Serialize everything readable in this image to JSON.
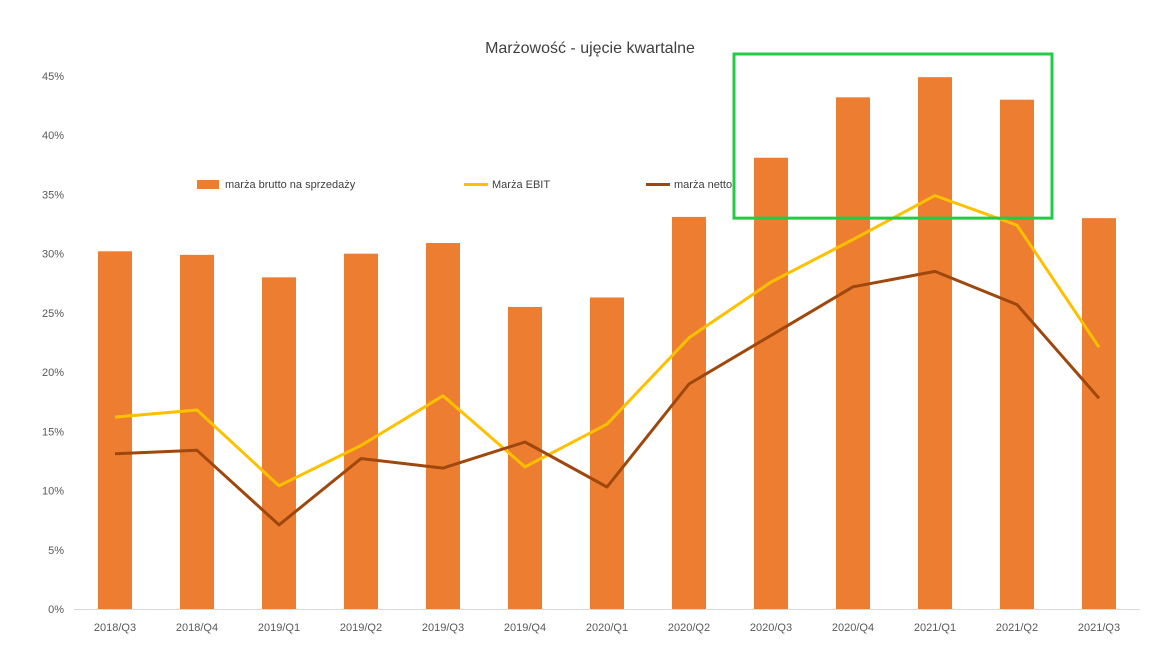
{
  "chart_data": {
    "type": "bar",
    "title": "Marżowość - ujęcie kwartalne",
    "xlabel": "",
    "ylabel": "",
    "categories": [
      "2018/Q3",
      "2018/Q4",
      "2019/Q1",
      "2019/Q2",
      "2019/Q3",
      "2019/Q4",
      "2020/Q1",
      "2020/Q2",
      "2020/Q3",
      "2020/Q4",
      "2021/Q1",
      "2021/Q2",
      "2021/Q3"
    ],
    "ylim": [
      0,
      0.45
    ],
    "yticks": [
      "0%",
      "5%",
      "10%",
      "15%",
      "20%",
      "25%",
      "30%",
      "35%",
      "40%",
      "45%"
    ],
    "grid": false,
    "legend_position": "inside-top",
    "series": [
      {
        "name": "marża brutto na sprzedaży",
        "type": "bar",
        "color": "#ED7D31",
        "values": [
          0.302,
          0.299,
          0.28,
          0.3,
          0.309,
          0.255,
          0.263,
          0.331,
          0.381,
          0.432,
          0.449,
          0.43,
          0.33
        ]
      },
      {
        "name": "Marża EBIT",
        "type": "line",
        "color": "#FFC000",
        "values": [
          0.162,
          0.168,
          0.104,
          0.138,
          0.18,
          0.12,
          0.156,
          0.229,
          0.276,
          0.312,
          0.349,
          0.324,
          0.221
        ]
      },
      {
        "name": "marża netto",
        "type": "line",
        "color": "#9E480E",
        "values": [
          0.131,
          0.134,
          0.071,
          0.127,
          0.119,
          0.141,
          0.103,
          0.19,
          0.231,
          0.272,
          0.285,
          0.257,
          0.178
        ]
      }
    ],
    "annotations": [
      {
        "type": "highlight-box",
        "color": "#22CC44",
        "from_category": "2020/Q3",
        "to_category": "2021/Q2",
        "y_from": 0.33,
        "y_to": 0.45
      }
    ]
  }
}
